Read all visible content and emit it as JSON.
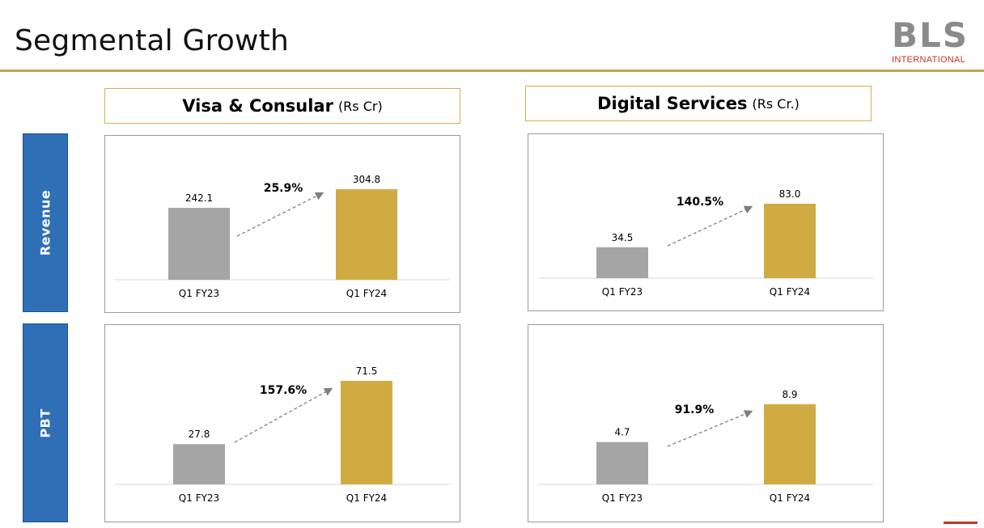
{
  "title": "Segmental Growth",
  "logo": {
    "mark": "BLS",
    "sub": "INTERNATIONAL"
  },
  "segments": [
    {
      "name": "Visa & Consular",
      "unit": "(Rs Cr)"
    },
    {
      "name": "Digital Services",
      "unit": "(Rs Cr.)"
    }
  ],
  "row_labels": [
    "Revenue",
    "PBT"
  ],
  "colors": {
    "prior": "#a5a5a5",
    "current": "#cfab42",
    "row_label_bg": "#2f6fb6",
    "accent": "#d4b04c"
  },
  "chart_data": [
    {
      "type": "bar",
      "segment": "Visa & Consular",
      "metric": "Revenue",
      "categories": [
        "Q1 FY23",
        "Q1 FY24"
      ],
      "values": [
        242.1,
        304.8
      ],
      "value_labels": [
        "242.1",
        "304.8"
      ],
      "growth": "25.9%"
    },
    {
      "type": "bar",
      "segment": "Digital Services",
      "metric": "Revenue",
      "categories": [
        "Q1 FY23",
        "Q1 FY24"
      ],
      "values": [
        34.5,
        83.0
      ],
      "value_labels": [
        "34.5",
        "83.0"
      ],
      "growth": "140.5%"
    },
    {
      "type": "bar",
      "segment": "Visa & Consular",
      "metric": "PBT",
      "categories": [
        "Q1 FY23",
        "Q1 FY24"
      ],
      "values": [
        27.8,
        71.5
      ],
      "value_labels": [
        "27.8",
        "71.5"
      ],
      "growth": "157.6%"
    },
    {
      "type": "bar",
      "segment": "Digital Services",
      "metric": "PBT",
      "categories": [
        "Q1 FY23",
        "Q1 FY24"
      ],
      "values": [
        4.7,
        8.9
      ],
      "value_labels": [
        "4.7",
        "8.9"
      ],
      "growth": "91.9%"
    }
  ]
}
